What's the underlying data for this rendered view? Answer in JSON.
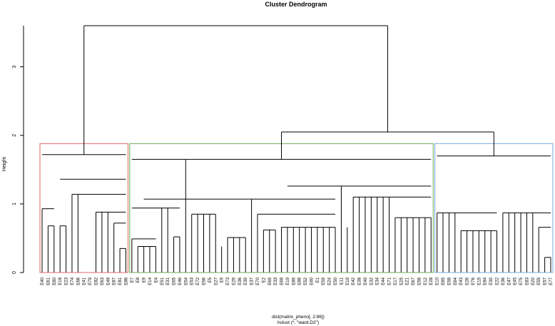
{
  "chart_data": {
    "type": "dendrogram",
    "title": "Cluster Dendrogram",
    "ylabel": "Height",
    "xlabel_lines": [
      "dist(matrix_pheno[, 2:86])",
      "hclust (*, \"ward.D2\")"
    ],
    "ylim": [
      0,
      3.6
    ],
    "yticks": [
      0,
      1,
      2,
      3
    ],
    "grid": false,
    "root_height": 3.6,
    "clusters": [
      {
        "color": "#e06666",
        "leaves": [
          "E40",
          "E61",
          "E80",
          "E18",
          "E23",
          "E74",
          "E66",
          "E41",
          "E79",
          "E82",
          "E63",
          "E48",
          "E87",
          "E81",
          "E86"
        ],
        "top": 1.72,
        "merges": [
          {
            "leaves": [
              "E40",
              "E61",
              "E80"
            ],
            "h": 0.93
          },
          {
            "leaves": [
              "E61",
              "E80"
            ],
            "h": 0.68
          },
          {
            "leaves": [
              "E18",
              "E23"
            ],
            "h": 0.68
          },
          {
            "leaves": [
              "E41",
              "E79"
            ],
            "h": 0.0
          },
          {
            "leaves": [
              "E87",
              "E81",
              "E86"
            ],
            "h": 0.72
          },
          {
            "leaves": [
              "E81",
              "E86"
            ],
            "h": 0.35
          },
          {
            "leaves": [
              "E82",
              "E63",
              "E48",
              "E87",
              "E81",
              "E86"
            ],
            "h": 0.88
          },
          {
            "leaves": [
              "E74",
              "E66",
              "E41",
              "E79",
              "E82",
              "E63",
              "E48",
              "E87",
              "E81",
              "E86"
            ],
            "h": 1.14
          },
          {
            "leaves": [
              "E18",
              "E23",
              "E74",
              "E66",
              "E41",
              "E79",
              "E82",
              "E63",
              "E48",
              "E87",
              "E81",
              "E86"
            ],
            "h": 1.36
          }
        ]
      },
      {
        "color": "#6aa84f",
        "leaves": [
          "E7",
          "E8",
          "E9",
          "E14",
          "E4",
          "E51",
          "E31",
          "E65",
          "E46",
          "E54",
          "E53",
          "E72",
          "E56",
          "E5",
          "E27",
          "E9",
          "E73",
          "E29",
          "E36",
          "E39",
          "E37",
          "E70",
          "E2",
          "E69",
          "E33",
          "E68",
          "E19",
          "E89",
          "E88",
          "E52",
          "E60",
          "E1",
          "E59",
          "E24",
          "E50",
          "E11",
          "E19",
          "E42",
          "E38",
          "E49",
          "E32",
          "E34",
          "E44",
          "E71",
          "E17",
          "E25",
          "E21",
          "E67",
          "E58",
          "E12",
          "E28"
        ],
        "top": 1.65,
        "merges": [
          {
            "leaves": [
              "E8",
              "E9",
              "E14",
              "E4"
            ],
            "h": 0.38
          },
          {
            "leaves": [
              "E7",
              "E8",
              "E9",
              "E14",
              "E4"
            ],
            "h": 0.49
          },
          {
            "leaves": [
              "E7",
              "E8",
              "E9",
              "E14",
              "E4",
              "E51",
              "E31",
              "E65",
              "E46"
            ],
            "h": 0.94
          },
          {
            "leaves": [
              "E65",
              "E46"
            ],
            "h": 0.52
          },
          {
            "leaves": [
              "E53",
              "E72",
              "E56",
              "E5",
              "E27"
            ],
            "h": 0.85
          },
          {
            "leaves": [
              "E73",
              "E29",
              "E36",
              "E39"
            ],
            "h": 0.51
          },
          {
            "leaves": [
              "E70",
              "E2",
              "E69",
              "E33",
              "E68",
              "E19",
              "E89",
              "E88",
              "E52",
              "E60",
              "E1",
              "E59",
              "E24",
              "E50"
            ],
            "h": 0.85
          },
          {
            "leaves": [
              "E2",
              "E69",
              "E33"
            ],
            "h": 0.62
          },
          {
            "leaves": [
              "E68",
              "E19",
              "E89",
              "E88",
              "E52",
              "E60",
              "E1",
              "E59",
              "E24",
              "E50"
            ],
            "h": 0.66
          },
          {
            "leaves": [
              "E53",
              "E72",
              "E56",
              "E5",
              "E27",
              "E9",
              "E73",
              "E29",
              "E36",
              "E39",
              "E37",
              "E70",
              "E2",
              "E69",
              "E33",
              "E68",
              "E19",
              "E89",
              "E88",
              "E52",
              "E60",
              "E1",
              "E59",
              "E24",
              "E50"
            ],
            "h": 1.07
          },
          {
            "leaves": [
              "E11",
              "E19",
              "E42",
              "E38",
              "E49",
              "E32",
              "E34",
              "E44",
              "E71",
              "E17",
              "E25",
              "E21",
              "E67",
              "E58",
              "E12",
              "E28"
            ],
            "h": 1.26
          },
          {
            "leaves": [
              "E42",
              "E38",
              "E49",
              "E32",
              "E34",
              "E44",
              "E71",
              "E17",
              "E25",
              "E21",
              "E67",
              "E58",
              "E12",
              "E28"
            ],
            "h": 1.1
          },
          {
            "leaves": [
              "E17",
              "E25",
              "E21",
              "E67",
              "E58",
              "E12",
              "E28"
            ],
            "h": 0.8
          }
        ]
      },
      {
        "color": "#6fa8dc",
        "leaves": [
          "E10",
          "E85",
          "E58",
          "E64",
          "E43",
          "E26",
          "E76",
          "E15",
          "E84",
          "E30",
          "E22",
          "E36",
          "E47",
          "E45",
          "E75",
          "E83",
          "E20",
          "E55",
          "E57",
          "E77"
        ],
        "top": 1.7,
        "merges": [
          {
            "leaves": [
              "E10",
              "E85",
              "E58",
              "E64",
              "E43",
              "E26",
              "E76",
              "E15",
              "E84",
              "E30",
              "E22"
            ],
            "h": 0.87
          },
          {
            "leaves": [
              "E43",
              "E26",
              "E76",
              "E15",
              "E84",
              "E30",
              "E22"
            ],
            "h": 0.61
          },
          {
            "leaves": [
              "E36",
              "E47",
              "E45",
              "E75",
              "E83",
              "E20",
              "E55",
              "E57",
              "E77"
            ],
            "h": 0.87
          },
          {
            "leaves": [
              "E55",
              "E57",
              "E77"
            ],
            "h": 0.66
          },
          {
            "leaves": [
              "E57",
              "E77"
            ],
            "h": 0.22
          }
        ]
      }
    ],
    "upper_merges": [
      {
        "between": [
          "green",
          "blue"
        ],
        "h": 2.05
      },
      {
        "between": [
          "red",
          "green+blue"
        ],
        "h": 3.6
      }
    ]
  }
}
